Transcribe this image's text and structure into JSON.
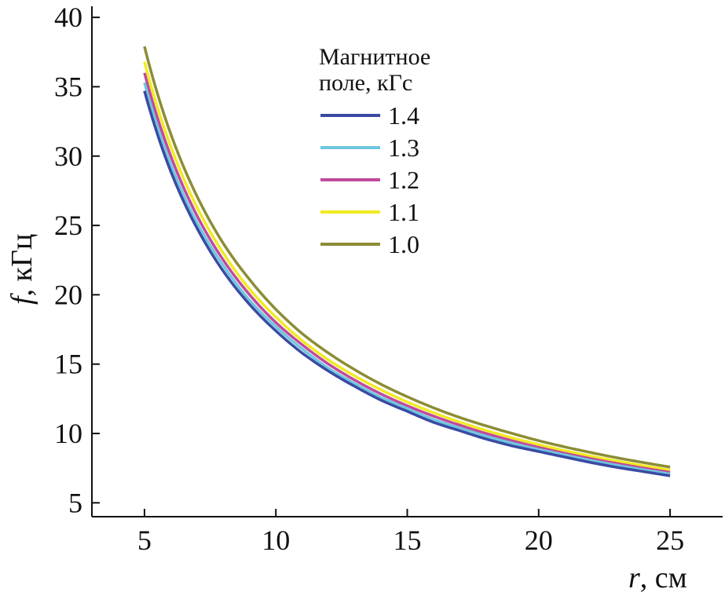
{
  "chart_data": {
    "type": "line",
    "x": [
      5,
      6,
      7,
      8,
      9,
      10,
      11,
      12,
      13,
      14,
      15,
      16,
      17,
      18,
      19,
      20,
      21,
      22,
      23,
      24,
      25
    ],
    "series": [
      {
        "name": "1.4",
        "color": "#3a4aa3",
        "values": [
          34.7,
          28.9,
          24.8,
          21.7,
          19.3,
          17.4,
          15.8,
          14.5,
          13.4,
          12.4,
          11.6,
          10.8,
          10.2,
          9.6,
          9.1,
          8.7,
          8.3,
          7.9,
          7.55,
          7.25,
          6.95
        ]
      },
      {
        "name": "1.3",
        "color": "#6ec6e0",
        "values": [
          35.3,
          29.4,
          25.2,
          22.1,
          19.6,
          17.7,
          16.1,
          14.7,
          13.6,
          12.6,
          11.8,
          11.0,
          10.4,
          9.8,
          9.3,
          8.85,
          8.45,
          8.05,
          7.7,
          7.38,
          7.08
        ]
      },
      {
        "name": "1.2",
        "color": "#c04a9c",
        "values": [
          36.0,
          30.0,
          25.7,
          22.5,
          20.0,
          18.0,
          16.4,
          15.0,
          13.85,
          12.85,
          12.0,
          11.25,
          10.6,
          10.0,
          9.47,
          9.0,
          8.57,
          8.18,
          7.83,
          7.5,
          7.2
        ]
      },
      {
        "name": "1.1",
        "color": "#f1ea22",
        "values": [
          36.8,
          30.7,
          26.3,
          23.0,
          20.4,
          18.4,
          16.7,
          15.3,
          14.15,
          13.15,
          12.27,
          11.5,
          10.82,
          10.22,
          9.68,
          9.2,
          8.76,
          8.36,
          8.0,
          7.67,
          7.36
        ]
      },
      {
        "name": "1.0",
        "color": "#8c8c35",
        "values": [
          37.9,
          31.6,
          27.1,
          23.7,
          21.1,
          18.95,
          17.2,
          15.8,
          14.6,
          13.55,
          12.65,
          11.85,
          11.15,
          10.55,
          10.0,
          9.48,
          9.03,
          8.62,
          8.24,
          7.9,
          7.58
        ]
      }
    ],
    "xlabel": {
      "var": "r",
      "unit": ", см"
    },
    "ylabel": {
      "var": "f",
      "unit": ", кГц"
    },
    "xlim": [
      3,
      27
    ],
    "ylim": [
      4,
      40.8
    ],
    "xticks": [
      "5",
      "10",
      "15",
      "20",
      "25"
    ],
    "yticks": [
      "5",
      "10",
      "15",
      "20",
      "25",
      "30",
      "35",
      "40"
    ],
    "legend": {
      "title_line1": "Магнитное",
      "title_line2": "поле, кГс",
      "position": "top-center"
    },
    "grid": false
  }
}
